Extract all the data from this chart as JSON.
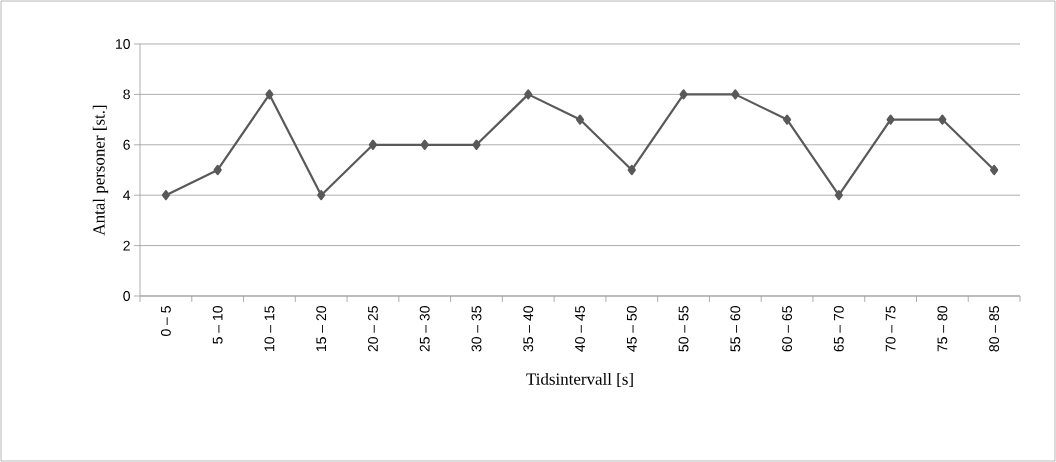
{
  "chart_data": {
    "type": "line",
    "xlabel": "Tidsintervall [s]",
    "ylabel": "Antal personer [st.]",
    "categories": [
      "0 – 5",
      "5 – 10",
      "10 – 15",
      "15 – 20",
      "20 – 25",
      "25 – 30",
      "30 – 35",
      "35 – 40",
      "40 – 45",
      "45 – 50",
      "50 – 55",
      "55 – 60",
      "60 – 65",
      "65 – 70",
      "70 – 75",
      "75 – 80",
      "80 – 85"
    ],
    "values": [
      4,
      5,
      8,
      4,
      6,
      6,
      6,
      8,
      7,
      5,
      8,
      8,
      7,
      4,
      7,
      7,
      5
    ],
    "color": "#595959",
    "ylim": [
      0,
      10
    ],
    "yticks": [
      0,
      2,
      4,
      6,
      8,
      10
    ],
    "grid": "y",
    "marker": "diamond",
    "line_style": "solid"
  }
}
